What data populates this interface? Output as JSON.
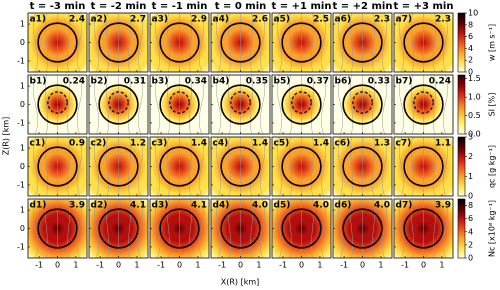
{
  "chart_data": {
    "type": "heatmap-grid",
    "columns": [
      "t = -3 min",
      "t = -2 min",
      "t = -1 min",
      "t = 0 min",
      "t = +1 min",
      "t = +2 min",
      "t = +3 min"
    ],
    "xlabel": "X(R) [km]",
    "ylabel": "Z(R) [km]",
    "xlim": [
      -1.6,
      1.6
    ],
    "xticks": [
      -1,
      0,
      1
    ],
    "ylim": [
      -1.6,
      1.6
    ],
    "yticks": [
      -1,
      0,
      1
    ],
    "rows": [
      {
        "panels": [
          "a1)",
          "a2)",
          "a3)",
          "a4)",
          "a5)",
          "a6)",
          "a7)"
        ],
        "values": [
          2.4,
          2.7,
          2.9,
          2.6,
          2.5,
          2.3,
          2.3
        ],
        "contour": false,
        "colorbar": {
          "label": "w [m s⁻¹]",
          "lim": [
            0,
            10
          ],
          "ticks": [
            0,
            2,
            4,
            6,
            8,
            10
          ],
          "colors": [
            "#ffffe0",
            "#ffe04a",
            "#f9a22e",
            "#e8501c",
            "#b40f0f",
            "#5a0000",
            "#000000"
          ]
        }
      },
      {
        "panels": [
          "b1)",
          "b2)",
          "b3)",
          "b4)",
          "b5)",
          "b6)",
          "b7)"
        ],
        "values": [
          0.24,
          0.31,
          0.34,
          0.35,
          0.37,
          0.33,
          0.24
        ],
        "contour": true,
        "colorbar": {
          "label": "SI [%]",
          "lim": [
            0,
            1.6
          ],
          "ticks": [
            {
              "value": 0,
              "label": "0.0"
            },
            {
              "value": 0.5,
              "label": "0.5"
            },
            {
              "value": 1,
              "label": "1.0"
            },
            {
              "value": 1.5,
              "label": "1.5"
            }
          ],
          "colors": [
            "#ffffe8",
            "#fff07a",
            "#fcc43a",
            "#f07a22",
            "#d02a18",
            "#8a0000",
            "#2a0000"
          ]
        }
      },
      {
        "panels": [
          "c1)",
          "c2)",
          "c3)",
          "c4)",
          "c5)",
          "c6)",
          "c7)"
        ],
        "values": [
          0.9,
          1.2,
          1.4,
          1.4,
          1.4,
          1.3,
          1.1
        ],
        "contour": false,
        "colorbar": {
          "label": "qc [g kg⁻¹]",
          "lim": [
            0,
            3
          ],
          "ticks": [
            0,
            1,
            2,
            3
          ],
          "colors": [
            "#ffffe0",
            "#ffe04a",
            "#f9a22e",
            "#e8501c",
            "#b40f0f",
            "#5a0000",
            "#000000"
          ]
        }
      },
      {
        "panels": [
          "d1)",
          "d2)",
          "d3)",
          "d4)",
          "d5)",
          "d6)",
          "d7)"
        ],
        "values": [
          3.9,
          4.1,
          4.1,
          4,
          4,
          4,
          3.9
        ],
        "value_labels": [
          "3.9",
          "4.1",
          "4.1",
          "4.0",
          "4.0",
          "4.0",
          "3.9"
        ],
        "contour": false,
        "colorbar": {
          "label": "Nc [x10⁸ kg⁻¹]",
          "lim": [
            0,
            9
          ],
          "ticks": [
            0,
            2,
            4,
            6,
            8
          ],
          "colors": [
            "#ffffe0",
            "#ffe04a",
            "#f9a22e",
            "#e8501c",
            "#b40f0f",
            "#5a0000",
            "#000000"
          ]
        }
      }
    ]
  }
}
